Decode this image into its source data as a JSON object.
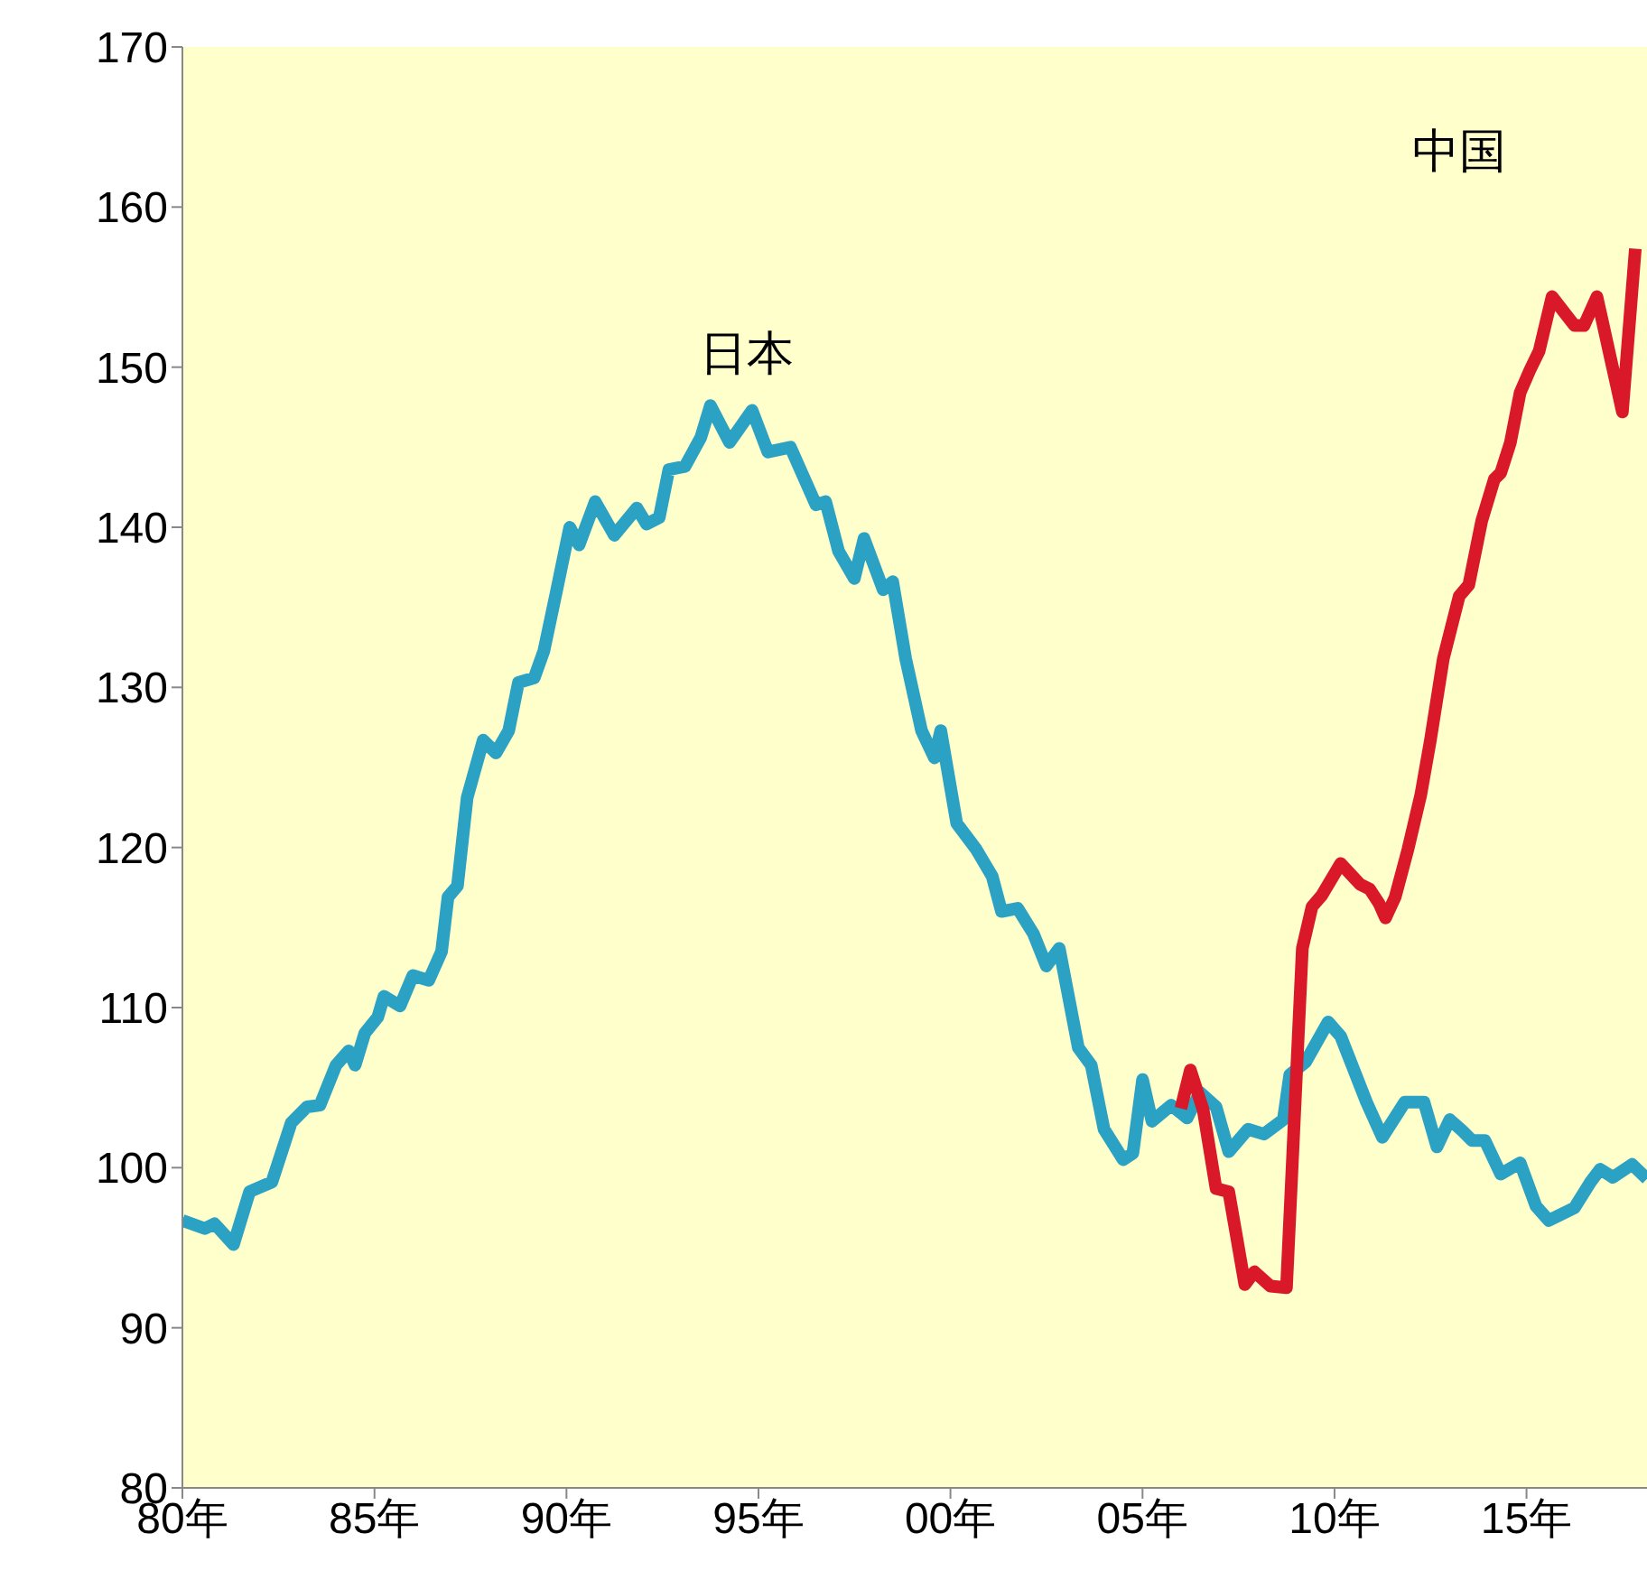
{
  "chart_data": {
    "type": "line",
    "xlim": [
      "1980-01",
      "2018-02-20"
    ],
    "xticks": [
      {
        "value": "1980",
        "label": "80年"
      },
      {
        "value": "1985",
        "label": "85年"
      },
      {
        "value": "1990",
        "label": "90年"
      },
      {
        "value": "1995",
        "label": "95年"
      },
      {
        "value": "2000",
        "label": "00年"
      },
      {
        "value": "2005",
        "label": "05年"
      },
      {
        "value": "2010",
        "label": "10年"
      },
      {
        "value": "2015",
        "label": "15年"
      }
    ],
    "ylim": [
      80,
      170
    ],
    "yticks": [
      80,
      90,
      100,
      110,
      120,
      130,
      140,
      150,
      160,
      170
    ],
    "grid": false,
    "legend": false,
    "marker": "none",
    "line_style": "solid",
    "series": [
      {
        "name": "日本",
        "color": "#2ba2c3",
        "x": [
          "1980-01",
          "1980-08",
          "1980-11",
          "1981-05",
          "1981-10",
          "1982-05",
          "1982-11",
          "1983-04",
          "1983-08",
          "1984-01",
          "1984-05",
          "1984-07",
          "1984-10",
          "1985-02",
          "1985-04",
          "1985-09",
          "1986-01",
          "1986-06",
          "1986-10",
          "1986-12",
          "1987-03",
          "1987-06",
          "1987-11",
          "1988-03",
          "1988-07",
          "1988-10",
          "1989-03",
          "1989-06",
          "1989-10",
          "1990-02",
          "1990-05",
          "1990-10",
          "1991-04",
          "1991-11",
          "1992-02",
          "1992-06",
          "1992-09",
          "1993-02",
          "1993-07",
          "1993-10",
          "1994-04",
          "1994-11",
          "1995-04",
          "1995-11",
          "1996-07",
          "1996-10",
          "1997-02",
          "1997-07",
          "1997-10",
          "1998-04",
          "1998-07",
          "1998-11",
          "1999-04",
          "1999-08",
          "1999-10",
          "2000-03",
          "2000-09",
          "2001-02",
          "2001-05",
          "2001-10",
          "2002-03",
          "2002-07",
          "2002-11",
          "2003-05",
          "2003-09",
          "2004-01",
          "2004-07",
          "2004-10",
          "2005-01",
          "2005-04",
          "2005-10",
          "2006-03",
          "2006-07",
          "2006-12",
          "2007-04",
          "2007-10",
          "2008-03",
          "2008-09",
          "2008-11",
          "2009-04",
          "2009-11",
          "2010-03",
          "2010-11",
          "2011-04",
          "2011-11",
          "2012-05",
          "2012-09",
          "2013-01",
          "2013-05",
          "2013-08",
          "2013-12",
          "2014-05",
          "2014-11",
          "2015-04",
          "2015-08",
          "2016-02",
          "2016-04",
          "2016-09",
          "2016-12",
          "2017-04",
          "2017-10",
          "2018-02-20"
        ],
        "values": [
          96.7,
          96.2,
          96.5,
          95.2,
          98.5,
          99.1,
          102.8,
          103.8,
          103.9,
          106.4,
          107.3,
          106.4,
          108.4,
          109.4,
          110.7,
          110.1,
          112.0,
          111.7,
          113.5,
          116.9,
          117.6,
          123.1,
          126.7,
          125.9,
          127.3,
          130.3,
          130.6,
          132.3,
          136.1,
          140.0,
          138.9,
          141.6,
          139.5,
          141.2,
          140.2,
          140.6,
          143.6,
          143.8,
          145.6,
          147.6,
          145.3,
          147.3,
          144.7,
          145.0,
          141.4,
          141.6,
          138.5,
          136.8,
          139.3,
          136.1,
          136.6,
          131.8,
          127.3,
          125.6,
          127.3,
          121.5,
          119.9,
          118.2,
          116.0,
          116.2,
          114.6,
          112.6,
          113.7,
          107.5,
          106.4,
          102.4,
          100.5,
          100.9,
          105.5,
          102.9,
          103.9,
          103.1,
          104.7,
          103.8,
          101.0,
          102.4,
          102.1,
          103.0,
          105.8,
          106.6,
          109.1,
          108.2,
          104.1,
          101.9,
          104.1,
          104.1,
          101.3,
          103.0,
          102.3,
          101.7,
          101.7,
          99.6,
          100.3,
          97.6,
          96.7,
          97.3,
          97.5,
          99.1,
          99.9,
          99.4,
          100.2,
          99.3
        ]
      },
      {
        "name": "中国",
        "color": "#d9192a",
        "x": [
          "2006-01",
          "2006-04",
          "2006-08",
          "2006-12",
          "2007-04",
          "2007-06",
          "2007-09",
          "2007-12",
          "2008-05",
          "2008-10",
          "2009-03",
          "2009-06",
          "2009-09",
          "2010-03",
          "2010-09",
          "2010-12",
          "2011-03",
          "2011-05",
          "2011-08",
          "2011-12",
          "2012-04",
          "2012-07",
          "2012-11",
          "2013-04",
          "2013-07",
          "2013-11",
          "2014-03",
          "2014-05",
          "2014-08",
          "2014-11",
          "2015-02",
          "2015-05",
          "2015-09",
          "2016-04",
          "2016-07",
          "2016-11",
          "2017-07",
          "2017-11"
        ],
        "values": [
          103.7,
          106.1,
          103.6,
          98.7,
          98.5,
          96.2,
          92.7,
          93.5,
          92.6,
          92.5,
          113.7,
          116.3,
          117.0,
          119.0,
          117.7,
          117.4,
          116.5,
          115.6,
          116.9,
          119.9,
          123.3,
          126.7,
          131.8,
          135.7,
          136.4,
          140.4,
          143.0,
          143.4,
          145.3,
          148.4,
          149.8,
          151.0,
          154.4,
          152.6,
          152.6,
          154.4,
          147.2,
          157.4
        ]
      }
    ]
  }
}
